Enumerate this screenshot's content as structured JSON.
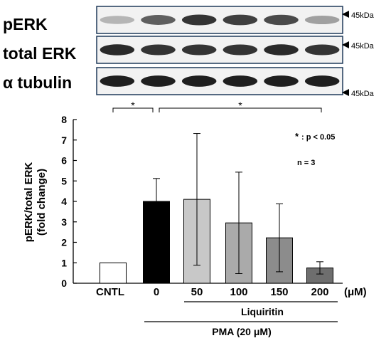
{
  "blot": {
    "rows": [
      {
        "label": "pERK",
        "marker": "45kDa"
      },
      {
        "label": "total ERK",
        "marker": "45kDa"
      },
      {
        "label": "α tubulin",
        "marker": "45kDa"
      }
    ],
    "pERK_intensity": [
      0.25,
      0.65,
      0.85,
      0.8,
      0.75,
      0.35
    ],
    "totalERK_intensity": [
      0.9,
      0.85,
      0.85,
      0.85,
      0.9,
      0.85
    ],
    "tubulin_intensity": [
      0.95,
      0.95,
      0.95,
      0.95,
      0.95,
      0.95
    ]
  },
  "chart_data": {
    "type": "bar",
    "categories": [
      "CNTL",
      "0",
      "50",
      "100",
      "150",
      "200"
    ],
    "values": [
      1.0,
      4.0,
      4.1,
      2.95,
      2.22,
      0.75
    ],
    "error": [
      0,
      1.12,
      3.22,
      2.48,
      1.66,
      0.3
    ],
    "bar_colors": [
      "#ffffff",
      "#000000",
      "#c8c8c8",
      "#aaaaaa",
      "#8c8c8c",
      "#6e6e6e"
    ],
    "ylabel_line1": "pERK/total ERK",
    "ylabel_line2": "(fold change)",
    "ylim": [
      0,
      8
    ],
    "yticks": [
      "0",
      "1",
      "2",
      "3",
      "4",
      "5",
      "6",
      "7",
      "8"
    ],
    "unit": "(μM)",
    "group_label_1": "Liquiritin",
    "group_label_2": "PMA (20 μM)",
    "sig_mark_1": "*",
    "sig_mark_2": "*",
    "annotation_star": "*",
    "annotation_p": ": p < 0.05",
    "annotation_n": "n = 3"
  }
}
